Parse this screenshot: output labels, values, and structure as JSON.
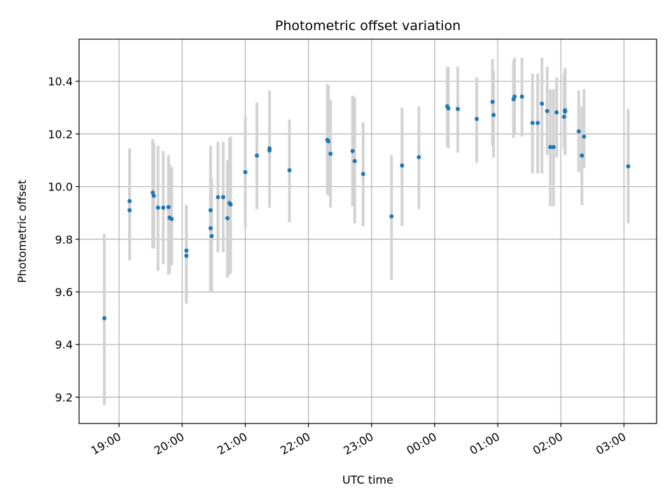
{
  "chart_data": {
    "type": "scatter",
    "title": "Photometric offset variation",
    "xlabel": "UTC time",
    "ylabel": "Photometric offset",
    "x_ticks": [
      "19:00",
      "20:00",
      "21:00",
      "22:00",
      "23:00",
      "00:00",
      "01:00",
      "02:00",
      "03:00"
    ],
    "y_ticks": [
      "9.2",
      "9.4",
      "9.6",
      "9.8",
      "10.0",
      "10.2",
      "10.4"
    ],
    "xlim": [
      "18:22",
      "03:31"
    ],
    "ylim": [
      9.1,
      10.56
    ],
    "grid": true,
    "series": [
      {
        "x": [
          "18:46",
          "19:10",
          "19:10",
          "19:32",
          "19:33",
          "19:37",
          "19:42",
          "19:47",
          "19:48",
          "19:50",
          "20:04",
          "20:04",
          "20:27",
          "20:27",
          "20:28",
          "20:34",
          "20:39",
          "20:43",
          "20:45",
          "20:46",
          "21:00",
          "21:11",
          "21:23",
          "21:23",
          "21:42",
          "22:18",
          "22:19",
          "22:21",
          "22:42",
          "22:44",
          "22:52",
          "23:19",
          "23:29",
          "23:45",
          "00:12",
          "00:13",
          "00:22",
          "00:40",
          "00:55",
          "00:56",
          "01:15",
          "01:16",
          "01:23",
          "01:33",
          "01:38",
          "01:42",
          "01:47",
          "01:50",
          "01:53",
          "01:56",
          "02:03",
          "02:04",
          "02:04",
          "02:17",
          "02:20",
          "02:22",
          "03:04"
        ],
        "y": [
          9.5,
          9.91,
          9.945,
          9.977,
          9.965,
          9.92,
          9.92,
          9.922,
          9.882,
          9.877,
          9.757,
          9.737,
          9.91,
          9.842,
          9.812,
          9.96,
          9.96,
          9.88,
          9.937,
          9.932,
          10.055,
          10.118,
          10.145,
          10.137,
          10.062,
          10.177,
          10.172,
          10.125,
          10.135,
          10.097,
          10.048,
          9.887,
          10.08,
          10.112,
          10.305,
          10.297,
          10.295,
          10.257,
          10.322,
          10.272,
          10.332,
          10.342,
          10.342,
          10.242,
          10.242,
          10.315,
          10.287,
          10.15,
          10.15,
          10.282,
          10.265,
          10.29,
          10.285,
          10.21,
          10.118,
          10.19,
          10.077
        ],
        "err_low": [
          9.17,
          9.72,
          9.735,
          9.765,
          9.765,
          9.68,
          9.705,
          9.665,
          9.67,
          9.7,
          9.6,
          9.555,
          9.6,
          9.6,
          9.6,
          9.75,
          9.75,
          9.655,
          9.665,
          9.672,
          9.845,
          9.915,
          9.92,
          9.92,
          9.865,
          9.97,
          9.965,
          9.92,
          9.925,
          9.86,
          9.85,
          9.645,
          9.85,
          9.915,
          10.15,
          10.145,
          10.13,
          10.09,
          10.155,
          10.11,
          10.185,
          10.2,
          10.19,
          10.05,
          10.05,
          10.05,
          10.12,
          9.925,
          9.925,
          10.11,
          10.145,
          10.125,
          10.12,
          10.055,
          9.93,
          10.07,
          9.86
        ],
        "err_high": [
          9.82,
          10.1,
          10.145,
          10.18,
          10.165,
          10.155,
          10.135,
          10.12,
          10.085,
          10.075,
          9.93,
          9.92,
          10.085,
          10.155,
          10.03,
          10.17,
          10.17,
          10.1,
          10.185,
          10.19,
          10.265,
          10.32,
          10.365,
          10.36,
          10.255,
          10.39,
          10.385,
          10.33,
          10.345,
          10.34,
          10.245,
          10.12,
          10.3,
          10.305,
          10.455,
          10.455,
          10.455,
          10.415,
          10.485,
          10.44,
          10.48,
          10.49,
          10.49,
          10.43,
          10.43,
          10.49,
          10.455,
          10.37,
          10.37,
          10.415,
          10.43,
          10.45,
          10.445,
          10.365,
          10.305,
          10.37,
          10.295
        ]
      }
    ],
    "colors": {
      "point": "#1f77b4",
      "errorbar": "#d3d3d3",
      "grid": "#b0b0b0"
    }
  }
}
